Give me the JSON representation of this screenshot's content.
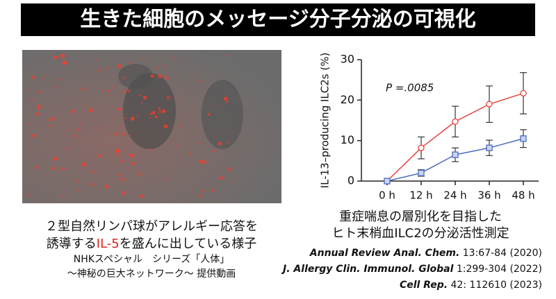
{
  "title": "生きた細胞のメッセージ分子分泌の可視化",
  "image_caption": {
    "line1": "２型自然リンパ球がアレルギー応答を",
    "line2": [
      "誘導する",
      "IL-5",
      "を盛んに出している様子"
    ],
    "line3": "NHKスペシャル　シリーズ「人体」",
    "line4": "〜神秘の巨大ネットワーク〜 提供動画"
  },
  "chart_data": {
    "type": "line",
    "y_label": "IL-13–producing ILC2s (%)",
    "annotation": "P =.0085",
    "categories": [
      "0 h",
      "12 h",
      "24 h",
      "36 h",
      "48 h"
    ],
    "series": [
      {
        "color": "#e8413c",
        "marker": "circle",
        "values": [
          0,
          8.2,
          14.7,
          19,
          21.7
        ],
        "errors": [
          0,
          2.7,
          3.8,
          4.5,
          5.1
        ]
      },
      {
        "color": "#4a6cc0",
        "marker": "square",
        "values": [
          0,
          2,
          6.5,
          8.2,
          10.5
        ],
        "errors": [
          0,
          0.8,
          1.7,
          1.9,
          2.2
        ]
      }
    ],
    "ylim": [
      0,
      30
    ],
    "yticks": [
      0,
      10,
      20,
      30
    ]
  },
  "chart_caption": [
    "重症喘息の層別化を目指した",
    "ヒト末梢血ILC2の分泌活性測定"
  ],
  "references": [
    {
      "journal": "Annual Review Anal. Chem.",
      "detail": " 13:67-84 (2020)"
    },
    {
      "journal": "J. Allergy Clin. Immunol. Global",
      "detail": " 1:299-304 (2022)"
    },
    {
      "journal": "Cell Rep.",
      "detail": " 42: 112610 (2023)"
    }
  ]
}
